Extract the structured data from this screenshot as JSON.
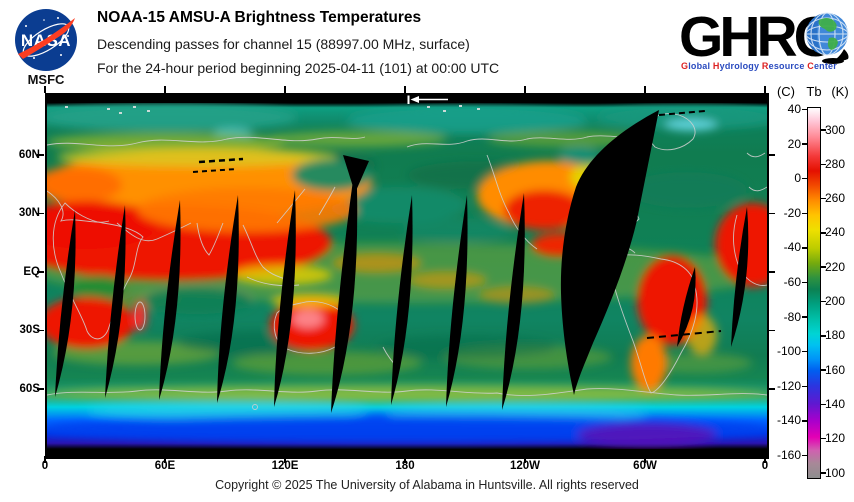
{
  "header": {
    "nasa_logo": {
      "text": "NASA",
      "sublabel": "MSFC"
    },
    "title": "NOAA-15 AMSU-A Brightness Temperatures",
    "subtitle1": "Descending passes for channel 15 (88997.00 MHz, surface)",
    "subtitle2": "For the 24-hour period beginning 2025-04-11 (101) at 00:00 UTC",
    "ghrc_logo": {
      "acronym": "GHRC",
      "tagline_words": [
        [
          "G",
          "lobal "
        ],
        [
          "H",
          "ydrology "
        ],
        [
          "R",
          "esource "
        ],
        [
          "C",
          "enter"
        ]
      ]
    }
  },
  "map": {
    "lat_labels": [
      "60N",
      "30N",
      "EQ",
      "30S",
      "60S"
    ],
    "lon_labels": [
      "0",
      "60E",
      "120E",
      "180",
      "120W",
      "60W",
      "0"
    ]
  },
  "colorbar": {
    "unit_left": "(C)",
    "unit_mid": "Tb",
    "unit_right": "(K)",
    "celsius_ticks": [
      "40",
      "20",
      "0",
      "-20",
      "-40",
      "-60",
      "-80",
      "-100",
      "-120",
      "-140",
      "-160"
    ],
    "kelvin_ticks": [
      "300",
      "280",
      "260",
      "240",
      "220",
      "200",
      "180",
      "160",
      "140",
      "120",
      "100"
    ],
    "gradient": [
      "#ffffff 0%",
      "#ffc8d8 3.5%",
      "#ff8894 8%",
      "#f43a3a 13%",
      "#e41000 17%",
      "#f24a00 21%",
      "#ff8c00 25%",
      "#ffc400 29%",
      "#eee000 33%",
      "#bccc00 38%",
      "#74aa0e 42%",
      "#2e9240 46%",
      "#0c8152 49%",
      "#00a080 53%",
      "#00bfa8 57%",
      "#00d4d4 61%",
      "#00c2f0 64%",
      "#0092f8 68%",
      "#005ef0 71%",
      "#2a36e0 75%",
      "#6018d0 80%",
      "#a800cc 84.5%",
      "#e400b4 89%",
      "#d060b0 92.5%",
      "#a88898 96%",
      "#8e8e8e 100%"
    ]
  },
  "footer": {
    "copyright": "Copyright © 2025 The University of Alabama in Huntsville.  All rights reserved"
  },
  "chart_data": {
    "type": "heatmap",
    "title": "NOAA-15 AMSU-A Brightness Temperatures",
    "subtitle": "Descending passes for channel 15 (88997.00 MHz, surface)",
    "period": "24-hour period beginning 2025-04-11 (101) at 00:00 UTC",
    "projection": "equirectangular world map, longitude 0 to 360 east, latitude 90N to 90S",
    "x_axis": {
      "label": "longitude",
      "ticks": [
        "0",
        "60E",
        "120E",
        "180",
        "120W",
        "60W",
        "0"
      ]
    },
    "y_axis": {
      "label": "latitude",
      "ticks": [
        "60N",
        "30N",
        "EQ",
        "30S",
        "60S"
      ]
    },
    "colorbar": {
      "title_celsius": "(C)",
      "title_kelvin": "Tb (K)",
      "celsius_ticks": [
        40,
        20,
        0,
        -20,
        -40,
        -60,
        -80,
        -100,
        -120,
        -140,
        -160
      ],
      "kelvin_ticks": [
        300,
        280,
        260,
        240,
        220,
        200,
        180,
        160,
        140,
        120,
        100
      ],
      "scale_colors_top_to_bottom": [
        "white",
        "pink",
        "red",
        "orange",
        "yellow",
        "yellow-green",
        "green",
        "dark green",
        "teal",
        "cyan",
        "light blue",
        "blue",
        "violet",
        "purple",
        "magenta",
        "gray"
      ]
    },
    "features": "Brightness-temperature field: warm land masses red/orange (Africa, Australia, South Asia, Americas), oceans green/teal, Antarctica cyan-blue-violet, polar edge rows black; narrow black lens-shaped gaps between descending orbital swaths plus one wide black data gap over western South America; white coastline overlay; white pass-start arrow at top near 180 longitude"
  }
}
